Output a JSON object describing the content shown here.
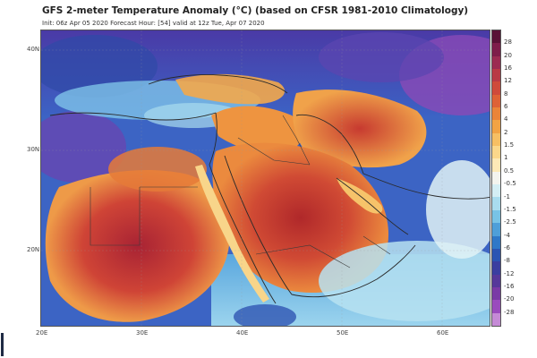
{
  "header": {
    "title": "GFS 2-meter Temperature Anomaly (°C) (based on CFSR 1981-2010 Climatology)",
    "subtitle": "Init: 06z Apr 05 2020   Forecast Hour: [54]   valid at 12z Tue, Apr 07 2020"
  },
  "axes": {
    "lat_labels": [
      "40N",
      "30N",
      "20N"
    ],
    "lon_labels": [
      "20E",
      "30E",
      "40E",
      "50E",
      "60E"
    ]
  },
  "colorbar": {
    "labels": [
      "28",
      "20",
      "16",
      "12",
      "8",
      "6",
      "4",
      "2",
      "1.5",
      "1",
      "0.5",
      "-0.5",
      "-1",
      "-1.5",
      "-2.5",
      "-4",
      "-6",
      "-8",
      "-12",
      "-16",
      "-20",
      "-28"
    ],
    "colors": [
      "#5a1236",
      "#7e1d4a",
      "#9c2b52",
      "#b93a45",
      "#cf4a3b",
      "#de6236",
      "#ea8438",
      "#f2a344",
      "#f7bf63",
      "#fbd78a",
      "#fde9b6",
      "#f4f4ee",
      "#d4eef4",
      "#a9dcee",
      "#78c3e6",
      "#4e9fd9",
      "#2f78c8",
      "#2b55b3",
      "#3b3ea0",
      "#56389a",
      "#7a3aa6",
      "#9a4bbd",
      "#c58ad6"
    ]
  },
  "colors": {
    "ocean_blue": "#3a63c4",
    "deep_blue": "#2b3f9e",
    "hot_red": "#c2332c",
    "warm_orange": "#e97e3b",
    "border_line": "#3a3a3a",
    "coast_line": "#2a2a2a"
  }
}
